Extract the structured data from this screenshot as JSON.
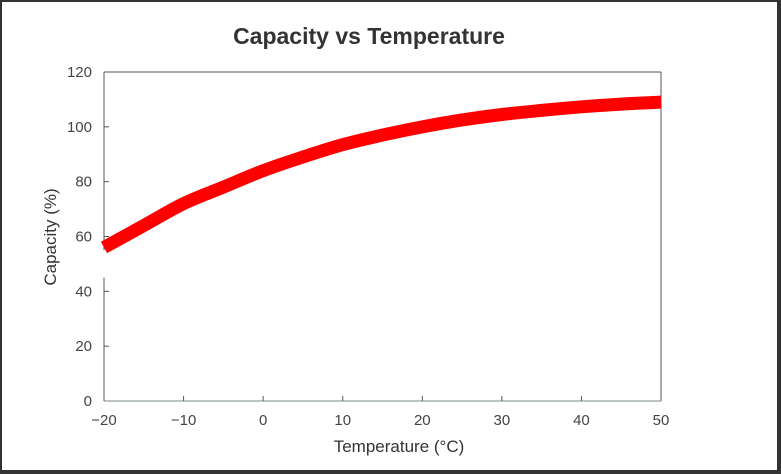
{
  "chart_data": {
    "type": "line",
    "title": "Capacity vs Temperature",
    "xlabel": "Temperature (°C)",
    "ylabel": "Capacity (%)",
    "xlim": [
      -20,
      50
    ],
    "ylim": [
      0,
      120
    ],
    "x_ticks": [
      -20,
      -10,
      0,
      10,
      20,
      30,
      40,
      50
    ],
    "x_tick_labels": [
      "−20",
      "−10",
      "0",
      "10",
      "20",
      "30",
      "40",
      "50"
    ],
    "y_ticks": [
      0,
      20,
      40,
      60,
      80,
      100,
      120
    ],
    "y_tick_labels": [
      "0",
      "20",
      "40",
      "60",
      "80",
      "100",
      "120"
    ],
    "y_axis_break": [
      45,
      55
    ],
    "grid": false,
    "legend": "none",
    "series": [
      {
        "name": "Capacity",
        "color": "#ff0000",
        "x": [
          -20,
          -15,
          -10,
          -5,
          0,
          5,
          10,
          15,
          20,
          25,
          30,
          35,
          40,
          45,
          50
        ],
        "y": [
          56,
          64,
          72,
          78,
          84,
          89,
          93.5,
          97,
          100,
          102.5,
          104.5,
          106,
          107.3,
          108.3,
          109
        ]
      }
    ]
  }
}
